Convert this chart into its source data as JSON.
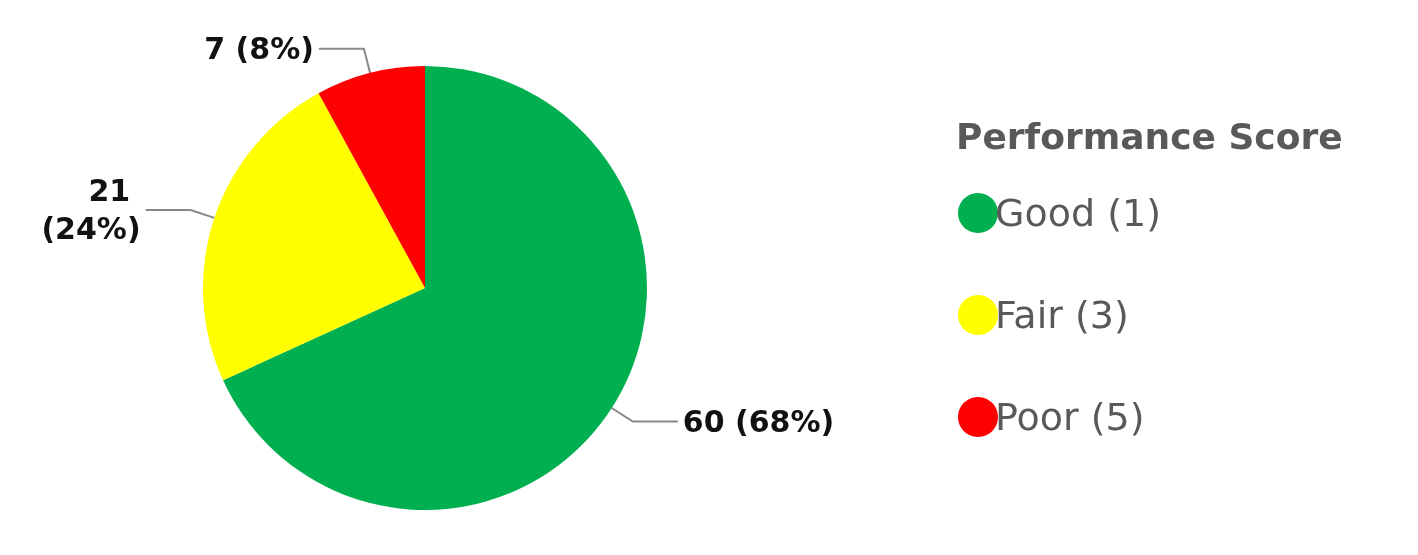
{
  "chart_data": {
    "type": "pie",
    "legend_title": "Performance Score",
    "categories": [
      "Good (1)",
      "Fair (3)",
      "Poor (5)"
    ],
    "values": [
      60,
      21,
      7
    ],
    "colors": [
      "#00b050",
      "#ffff00",
      "#ff0000"
    ],
    "value_labels": [
      "60 (68%)",
      "21 (24%)",
      "7 (8%)"
    ],
    "legend": "right"
  }
}
